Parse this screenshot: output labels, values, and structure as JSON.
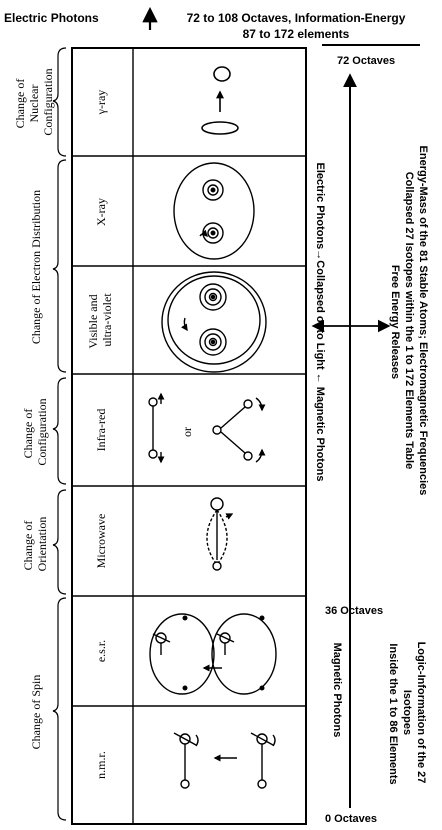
{
  "header": {
    "left_title": "Electric Photons",
    "right_line1": "72 to 108 Octaves, Information-Energy",
    "right_line2": "87 to 172 elements"
  },
  "categories": {
    "nuclear": [
      "Change of",
      "Nuclear",
      "Configuration"
    ],
    "electron": "Change of Electron Distribution",
    "configuration": [
      "Change of",
      "Configuration"
    ],
    "orientation": [
      "Change of",
      "Orientation"
    ],
    "spin": "Change of Spin"
  },
  "spectrum": {
    "gamma": "γ-ray",
    "xray": "X-ray",
    "visible_line1": "Visible and",
    "visible_line2": "ultra-violet",
    "infrared": "Infra-red",
    "microwave": "Microwave",
    "esr": "e.s.r.",
    "nmr": "n.m.r.",
    "or_label": "or"
  },
  "right_panel": {
    "energy_lines": [
      "Energy-Mass of the 81 Stable Atoms; Electromagnetic Frequencies",
      "Collapsed 27 Isotopes within the 1 to 172 Elements Table",
      "Free Energy Releases"
    ],
    "middle_line": "Electric Photons→Collapsed onto Light ← Magnetic Photons",
    "logic_lines": [
      "Logic-Information of the 27",
      "Isotopes",
      "Inside the 1 to 86 Elements"
    ],
    "magnetic_photons": "Magnetic Photons",
    "octave_top": "72 Octaves",
    "octave_mid": "36 Octaves",
    "octave_bottom": "0 Octaves"
  }
}
